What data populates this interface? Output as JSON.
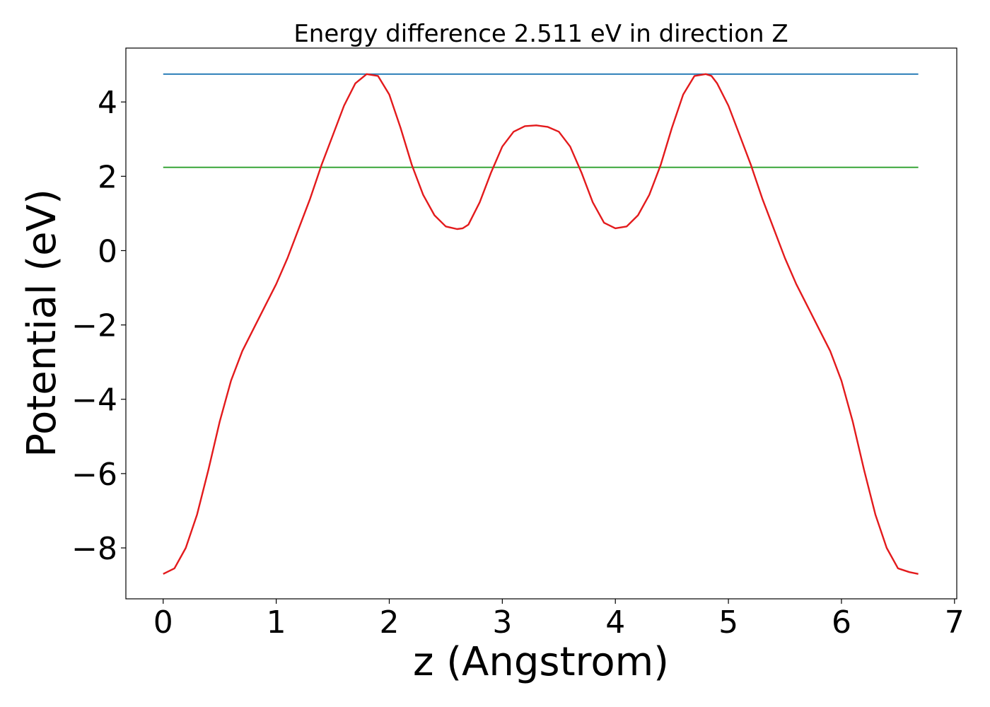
{
  "chart_data": {
    "type": "line",
    "title": "Energy difference 2.511 eV in direction Z",
    "xlabel": "z (Angstrom)",
    "ylabel": "Potential (eV)",
    "xlim": [
      -0.33,
      7.02
    ],
    "ylim": [
      -9.37,
      5.45
    ],
    "xticks": [
      0,
      1,
      2,
      3,
      4,
      5,
      6,
      7
    ],
    "xtick_labels": [
      "0",
      "1",
      "2",
      "3",
      "4",
      "5",
      "6",
      "7"
    ],
    "yticks": [
      -8,
      -6,
      -4,
      -2,
      0,
      2,
      4
    ],
    "ytick_labels": [
      "−8",
      "−6",
      "−4",
      "−2",
      "0",
      "2",
      "4"
    ],
    "grid": false,
    "series": [
      {
        "color": "#1f77b4",
        "x": [
          0,
          6.68
        ],
        "y": [
          4.75,
          4.75
        ]
      },
      {
        "color": "#2ca02c",
        "x": [
          0,
          6.68
        ],
        "y": [
          2.24,
          2.24
        ]
      },
      {
        "color": "#e31a1c",
        "x": [
          0,
          0.1,
          0.2,
          0.3,
          0.4,
          0.5,
          0.6,
          0.7,
          0.8,
          0.9,
          1.0,
          1.1,
          1.2,
          1.3,
          1.4,
          1.5,
          1.6,
          1.7,
          1.8,
          1.9,
          2.0,
          2.1,
          2.2,
          2.3,
          2.4,
          2.5,
          2.6,
          2.65,
          2.7,
          2.8,
          2.9,
          3.0,
          3.1,
          3.2,
          3.3,
          3.4,
          3.5,
          3.6,
          3.7,
          3.8,
          3.9,
          4.0,
          4.1,
          4.2,
          4.3,
          4.4,
          4.5,
          4.6,
          4.7,
          4.8,
          4.85,
          4.9,
          5.0,
          5.1,
          5.2,
          5.3,
          5.4,
          5.5,
          5.6,
          5.7,
          5.8,
          5.9,
          6.0,
          6.1,
          6.2,
          6.3,
          6.4,
          6.5,
          6.6,
          6.68
        ],
        "y": [
          -8.7,
          -8.55,
          -8.0,
          -7.1,
          -5.9,
          -4.6,
          -3.5,
          -2.7,
          -2.1,
          -1.5,
          -0.9,
          -0.2,
          0.6,
          1.4,
          2.3,
          3.1,
          3.9,
          4.5,
          4.75,
          4.7,
          4.2,
          3.3,
          2.3,
          1.5,
          0.95,
          0.65,
          0.58,
          0.6,
          0.7,
          1.3,
          2.1,
          2.8,
          3.2,
          3.35,
          3.37,
          3.33,
          3.2,
          2.8,
          2.1,
          1.3,
          0.75,
          0.6,
          0.65,
          0.95,
          1.5,
          2.3,
          3.3,
          4.2,
          4.7,
          4.75,
          4.7,
          4.5,
          3.9,
          3.1,
          2.3,
          1.4,
          0.6,
          -0.2,
          -0.9,
          -1.5,
          -2.1,
          -2.7,
          -3.5,
          -4.6,
          -5.9,
          -7.1,
          -8.0,
          -8.55,
          -8.65,
          -8.7
        ]
      }
    ]
  }
}
